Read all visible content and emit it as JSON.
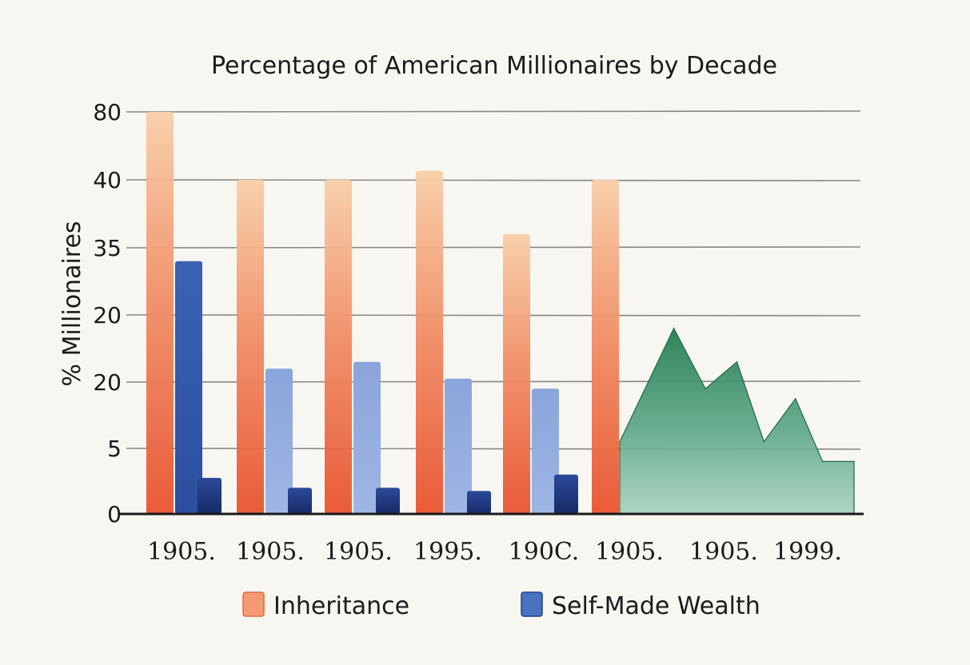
{
  "chart_data": {
    "type": "bar",
    "title": "Percentage of American Millionaires by Decade",
    "ylabel": "% Millionaires",
    "y_tick_labels": [
      "0",
      "5",
      "20",
      "20",
      "35",
      "40",
      "80"
    ],
    "categories": [
      "1905.",
      "1905.",
      "1905.",
      "1995.",
      "190C.",
      "1905.",
      "1905.",
      "1999."
    ],
    "grid": true,
    "legend_position": "bottom",
    "legend": [
      "Inheritance",
      "Self-Made Wealth"
    ],
    "colors": {
      "inheritance": "#ee6a45",
      "inheritance_light": "#f6b98c",
      "self_made": "#4a72c0",
      "self_made_light": "#8fa9de",
      "self_made_dark": "#233e86",
      "area": "#2f8a5e",
      "area_light": "#9cc9b4"
    },
    "bar_groups": [
      {
        "inheritance": 80,
        "self_made": 38,
        "self_made_2": 5.5
      },
      {
        "inheritance": 50,
        "self_made": 22,
        "self_made_2": 4
      },
      {
        "inheritance": 50,
        "self_made": 23,
        "self_made_2": 4
      },
      {
        "inheritance": 54,
        "self_made": 20.5,
        "self_made_2": 3.5
      },
      {
        "inheritance": 42,
        "self_made": 19,
        "self_made_2": 6
      },
      {
        "inheritance": 50
      }
    ],
    "area_series": [
      {
        "x": 6.0,
        "y": 11
      },
      {
        "x": 6.6,
        "y": 28
      },
      {
        "x": 6.95,
        "y": 19
      },
      {
        "x": 7.3,
        "y": 23
      },
      {
        "x": 7.6,
        "y": 11
      },
      {
        "x": 7.95,
        "y": 17.5
      },
      {
        "x": 8.25,
        "y": 8
      },
      {
        "x": 8.6,
        "y": 8
      }
    ]
  }
}
